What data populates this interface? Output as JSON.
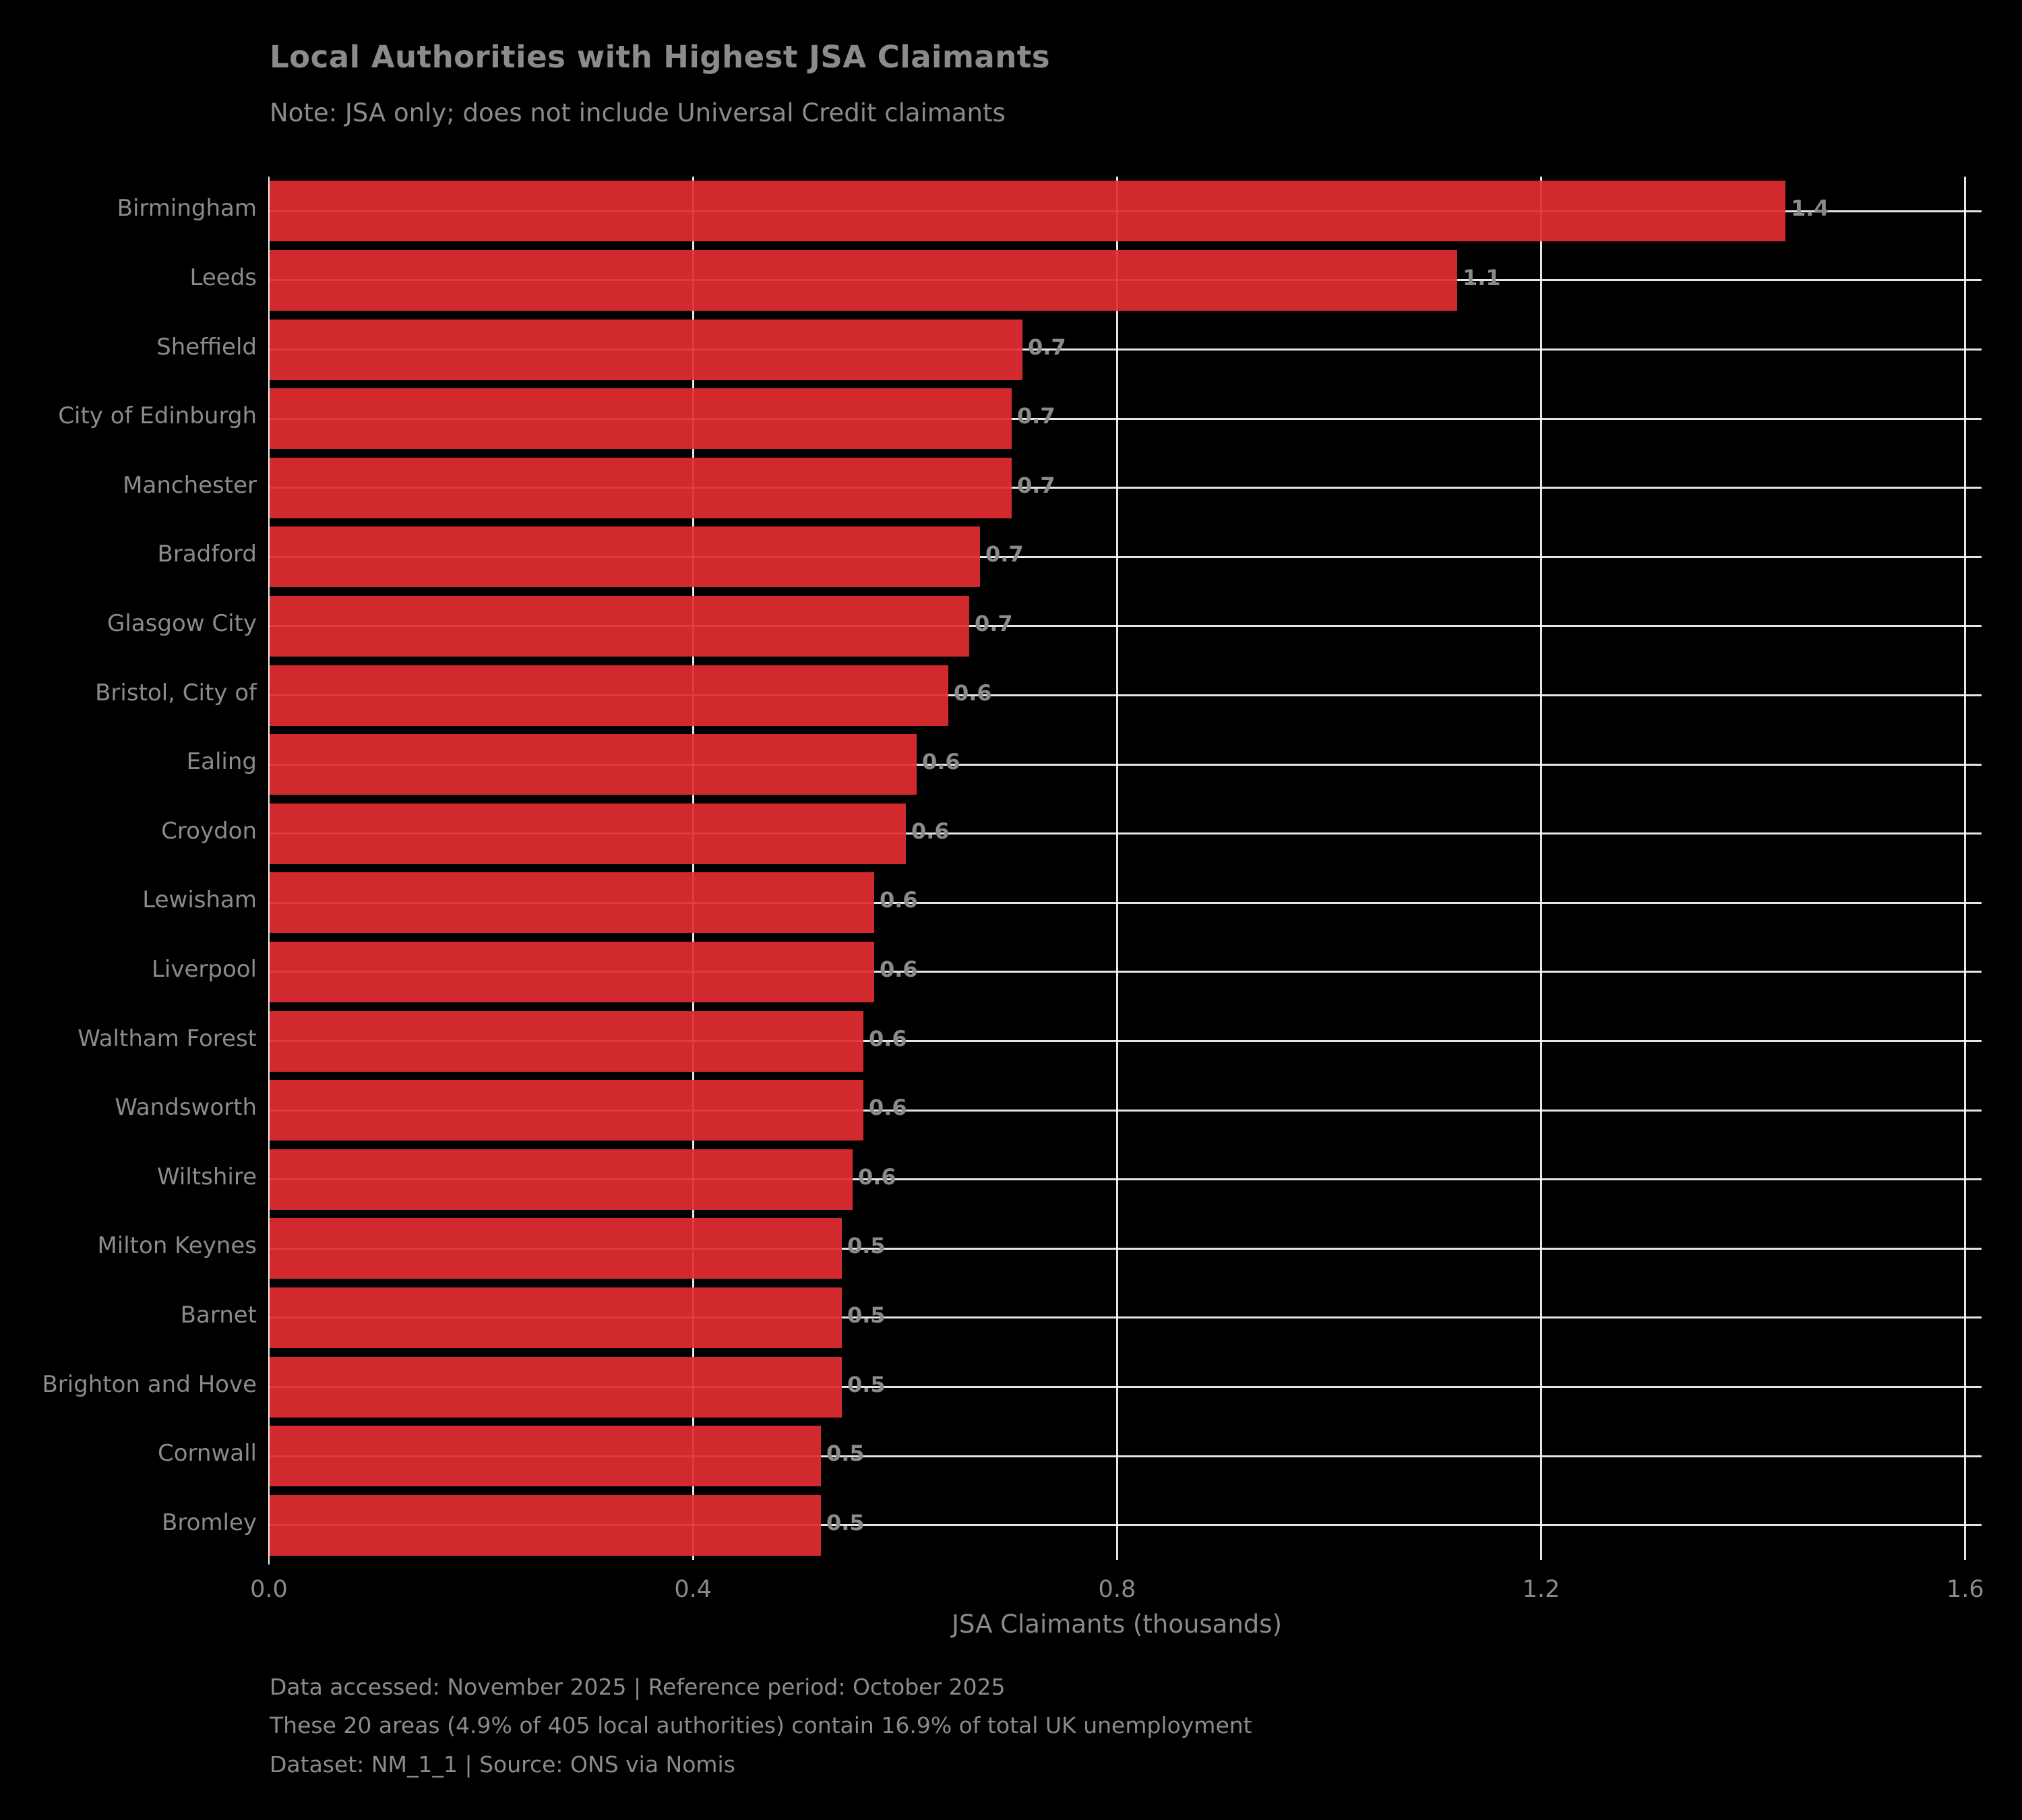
{
  "chart": {
    "title": "Local Authorities with Highest JSA Claimants",
    "subtitle": "Note: JSA only; does not include Universal Credit claimants",
    "xlabel": "JSA Claimants (thousands)"
  },
  "footer": {
    "line1": "Data accessed: November 2025 | Reference period: October 2025",
    "line2": "These 20 areas (4.9% of 405 local authorities) contain 16.9% of total UK unemployment",
    "line3": "Dataset: NM_1_1 | Source: ONS via Nomis"
  },
  "chart_data": {
    "type": "bar",
    "orientation": "horizontal",
    "title": "Local Authorities with Highest JSA Claimants",
    "subtitle": "Note: JSA only; does not include Universal Credit claimants",
    "xlabel": "JSA Claimants (thousands)",
    "ylabel": "",
    "categories": [
      "Birmingham",
      "Leeds",
      "Sheffield",
      "City of Edinburgh",
      "Manchester",
      "Bradford",
      "Glasgow City",
      "Bristol, City of",
      "Ealing",
      "Croydon",
      "Lewisham",
      "Liverpool",
      "Waltham Forest",
      "Wandsworth",
      "Wiltshire",
      "Milton Keynes",
      "Barnet",
      "Brighton and Hove",
      "Cornwall",
      "Bromley"
    ],
    "values": [
      1.43,
      1.12,
      0.71,
      0.7,
      0.7,
      0.67,
      0.66,
      0.64,
      0.61,
      0.6,
      0.57,
      0.57,
      0.56,
      0.56,
      0.55,
      0.54,
      0.54,
      0.54,
      0.52,
      0.52
    ],
    "bar_labels": [
      "1.4",
      "1.1",
      "0.7",
      "0.7",
      "0.7",
      "0.7",
      "0.7",
      "0.6",
      "0.6",
      "0.6",
      "0.6",
      "0.6",
      "0.6",
      "0.6",
      "0.6",
      "0.5",
      "0.5",
      "0.5",
      "0.5",
      "0.5"
    ],
    "xticks": [
      0.0,
      0.4,
      0.8,
      1.2,
      1.6
    ],
    "xtick_labels": [
      "0.0",
      "0.4",
      "0.8",
      "1.2",
      "1.6"
    ],
    "xlim": [
      0,
      1.615
    ],
    "grid": true,
    "legend": false,
    "colors": {
      "background": "#000000",
      "bar": "#d2292e",
      "grid": "#ffffff",
      "text": "#8b8b8b"
    }
  }
}
